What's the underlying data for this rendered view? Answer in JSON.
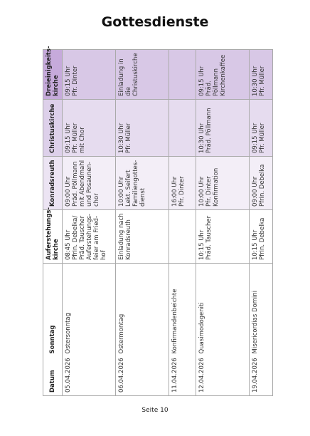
{
  "header": {
    "title": "Gottesdienste"
  },
  "table": {
    "headers": [
      [
        "Datum"
      ],
      [
        "Sonntag"
      ],
      [
        "Auferstehungs-",
        "kirche"
      ],
      [
        "Konradsreuth"
      ],
      [
        "Christuskirche"
      ],
      [
        "Dreieinigkeits-",
        "kirche"
      ]
    ],
    "rows": [
      {
        "date": "05.04.2026",
        "sunday": "Ostersonntag",
        "cells": [
          [
            "08:45 Uhr",
            "Pfrin. Debelka/",
            "Präd. Tauscher",
            "Auferstehungs-",
            "feier am Fried-",
            "hof"
          ],
          [
            "09:00 Uhr",
            "Präd. Pöllmann",
            "mit Abendmahl",
            "und Posaunen-",
            "chor"
          ],
          [
            "09:15 Uhr",
            "Pfr. Müller",
            "mit Chor"
          ],
          [
            "09:15 Uhr",
            "Pfr. Dinter"
          ]
        ]
      },
      {
        "date": "06.04.2026",
        "sunday": "Ostermontag",
        "cells": [
          [
            "Einladung nach",
            "Konradsreuth"
          ],
          [
            "10:00 Uhr",
            "Lekt. Seifert",
            "Familiengottes-",
            "dienst"
          ],
          [
            "10:30 Uhr",
            "Pfr. Müller"
          ],
          [
            "Einladung in die",
            "Christuskirche"
          ]
        ]
      },
      {
        "date": "11.04.2026",
        "sunday": "Konfirmandenbeichte",
        "cells": [
          [],
          [
            "16:00 Uhr",
            "Pfr. Dinter"
          ],
          [],
          []
        ]
      },
      {
        "date": "12.04.2026",
        "sunday": "Quasimodogeniti",
        "cells": [
          [
            "10:15 Uhr",
            "Präd. Tauscher"
          ],
          [
            "10:00 Uhr",
            "Pfr. Dinter",
            "Konfirmation"
          ],
          [
            "10:30 Uhr",
            "Präd. Pöllmann"
          ],
          [
            "09:15 Uhr",
            "Präd. Pöllmann",
            "Kirchenkaffee"
          ]
        ]
      },
      {
        "date": "19.04.2026",
        "sunday": "Misericordias Domini",
        "cells": [
          [
            "10:15 Uhr",
            "Pfrin. Debelka"
          ],
          [
            "09:00 Uhr",
            "Pfrin. Debelka"
          ],
          [
            "09:15 Uhr",
            "Pfr. Müller"
          ],
          [
            "10:30 Uhr",
            "Pfr. Müller"
          ]
        ]
      }
    ]
  },
  "footer": {
    "page": "Seite 10"
  }
}
